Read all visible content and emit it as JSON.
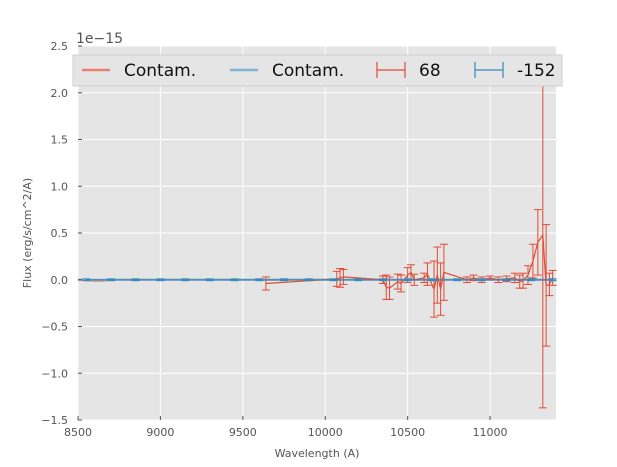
{
  "chart_data": {
    "type": "line",
    "title": "",
    "xlabel": "Wavelength (A)",
    "ylabel": "Flux (erg/s/cm^2/A)",
    "offset_text": "1e−15",
    "xlim": [
      8500,
      11400
    ],
    "ylim": [
      -1.5,
      2.5
    ],
    "x_ticks": [
      8500,
      9000,
      9500,
      10000,
      10500,
      11000
    ],
    "x_tick_labels": [
      "8500",
      "9000",
      "9500",
      "10000",
      "10500",
      "11000"
    ],
    "y_ticks": [
      -1.5,
      -1.0,
      -0.5,
      0.0,
      0.5,
      1.0,
      1.5,
      2.0,
      2.5
    ],
    "y_tick_labels": [
      "−1.5",
      "−1.0",
      "−0.5",
      "0.0",
      "0.5",
      "1.0",
      "1.5",
      "2.0",
      "2.5"
    ],
    "grid": true,
    "legend_position": "top",
    "legend": [
      {
        "label": "Contam.",
        "kind": "line",
        "color": "#e5816e"
      },
      {
        "label": "Contam.",
        "kind": "line",
        "color": "#7fb2d4"
      },
      {
        "label": "68",
        "kind": "errorbar",
        "color": "#e24a33"
      },
      {
        "label": "-152",
        "kind": "errorbar",
        "color": "#348abd"
      }
    ],
    "series": [
      {
        "label_ref": 0,
        "kind": "line",
        "color": "#e5816e",
        "x": [
          8500,
          8600,
          8650,
          8700,
          9000,
          9500,
          9650,
          10000,
          10500,
          11000,
          11300,
          11400
        ],
        "y": [
          0.0,
          -0.01,
          -0.01,
          0.0,
          0.0,
          0.0,
          0.0,
          0.0,
          0.0,
          0.0,
          0.0,
          0.0
        ]
      },
      {
        "label_ref": 1,
        "kind": "line",
        "color": "#7fb2d4",
        "x": [
          8500,
          9000,
          9500,
          10000,
          10500,
          11000,
          11400
        ],
        "y": [
          0.0,
          0.0,
          0.0,
          0.0,
          0.0,
          0.0,
          0.0
        ]
      },
      {
        "label_ref": 2,
        "kind": "errorbar",
        "color": "#e24a33",
        "x": [
          9640,
          10070,
          10090,
          10110,
          10350,
          10370,
          10390,
          10440,
          10460,
          10500,
          10520,
          10540,
          10600,
          10620,
          10660,
          10680,
          10700,
          10720,
          10860,
          10900,
          10950,
          11000,
          11050,
          11100,
          11150,
          11180,
          11200,
          11230,
          11260,
          11290,
          11320,
          11340,
          11360,
          11380
        ],
        "y": [
          -0.04,
          0.01,
          0.02,
          0.03,
          0.0,
          -0.08,
          -0.09,
          -0.02,
          -0.04,
          0.05,
          0.08,
          0.0,
          0.02,
          0.06,
          -0.1,
          0.05,
          -0.1,
          0.08,
          0.0,
          0.02,
          0.0,
          0.02,
          0.0,
          0.01,
          0.02,
          -0.02,
          -0.01,
          0.05,
          0.2,
          0.4,
          0.48,
          -0.06,
          -0.05,
          0.02
        ],
        "err": [
          0.07,
          0.08,
          0.1,
          0.08,
          0.04,
          0.13,
          0.12,
          0.08,
          0.09,
          0.08,
          0.08,
          0.06,
          0.05,
          0.12,
          0.3,
          0.3,
          0.28,
          0.3,
          0.03,
          0.03,
          0.03,
          0.02,
          0.03,
          0.03,
          0.05,
          0.07,
          0.08,
          0.1,
          0.18,
          0.35,
          1.85,
          0.65,
          0.12,
          0.08
        ]
      },
      {
        "label_ref": 3,
        "kind": "errorbar",
        "color": "#348abd",
        "x": [
          8550,
          8700,
          8850,
          9000,
          9150,
          9300,
          9450,
          9600,
          9750,
          9900,
          10050,
          10200,
          10350,
          10500,
          10650,
          10800,
          10950,
          11100,
          11250,
          11380
        ],
        "y": [
          0.0,
          0.0,
          0.0,
          0.0,
          0.0,
          0.0,
          0.0,
          0.0,
          0.0,
          0.0,
          0.0,
          0.0,
          0.0,
          0.0,
          0.0,
          0.0,
          0.0,
          0.0,
          0.0,
          0.0
        ],
        "err": [
          0.01,
          0.01,
          0.01,
          0.01,
          0.01,
          0.01,
          0.01,
          0.01,
          0.01,
          0.01,
          0.01,
          0.01,
          0.01,
          0.01,
          0.01,
          0.01,
          0.01,
          0.01,
          0.01,
          0.01
        ]
      }
    ]
  }
}
